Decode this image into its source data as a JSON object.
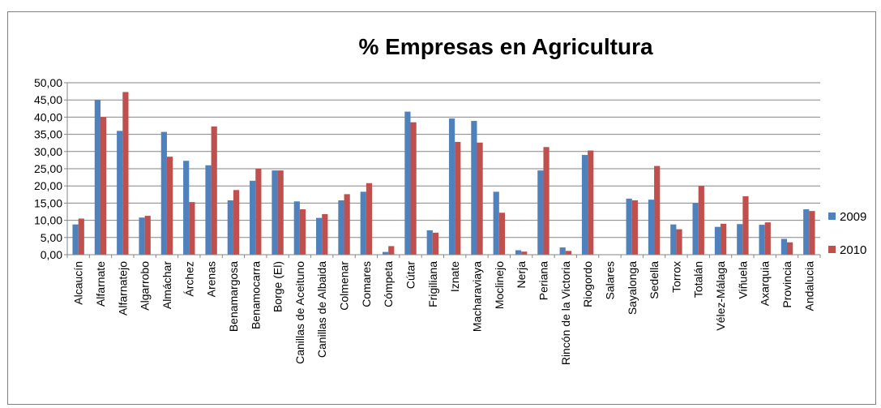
{
  "chart_data": {
    "type": "bar",
    "title": "% Empresas en Agricultura",
    "xlabel": "",
    "ylabel": "",
    "ylim": [
      0,
      50
    ],
    "yticks": [
      "0,00",
      "5,00",
      "10,00",
      "15,00",
      "20,00",
      "25,00",
      "30,00",
      "35,00",
      "40,00",
      "45,00",
      "50,00"
    ],
    "grid": true,
    "legend_position": "right",
    "categories": [
      "Alcaucín",
      "Alfarnate",
      "Alfarnatejo",
      "Algarrobo",
      "Almáchar",
      "Árchez",
      "Arenas",
      "Benamargosa",
      "Benamocarra",
      "Borge (El)",
      "Canillas de Aceituno",
      "Canillas de Albaida",
      "Colmenar",
      "Comares",
      "Cómpeta",
      "Cútar",
      "Frigiliana",
      "Iznate",
      "Macharaviaya",
      "Moclinejo",
      "Nerja",
      "Periana",
      "Rincón de la Victoria",
      "Riogordo",
      "Salares",
      "Sayalonga",
      "Sedella",
      "Torrox",
      "Totalán",
      "Vélez-Málaga",
      "Viñuela",
      "Axarquia",
      "Provincia",
      "Andalucia"
    ],
    "series": [
      {
        "name": "2009",
        "color": "#4f81bd",
        "values": [
          8.8,
          45.0,
          36.0,
          10.8,
          35.7,
          27.3,
          26.0,
          15.8,
          21.5,
          24.5,
          15.5,
          10.7,
          15.8,
          18.3,
          0.8,
          41.6,
          7.1,
          39.6,
          38.9,
          18.3,
          1.3,
          24.5,
          2.1,
          29.0,
          0.0,
          16.3,
          16.0,
          8.8,
          15.0,
          8.1,
          8.9,
          8.7,
          4.6,
          13.2
        ]
      },
      {
        "name": "2010",
        "color": "#c0504d",
        "values": [
          10.5,
          40.0,
          47.3,
          11.3,
          28.5,
          15.3,
          37.3,
          18.8,
          25.0,
          24.5,
          13.2,
          11.8,
          17.6,
          20.8,
          2.5,
          38.5,
          6.4,
          32.8,
          32.6,
          12.2,
          0.9,
          31.3,
          1.1,
          30.3,
          0.0,
          15.8,
          25.8,
          7.4,
          20.0,
          9.0,
          17.0,
          9.4,
          3.6,
          12.7
        ]
      }
    ]
  }
}
